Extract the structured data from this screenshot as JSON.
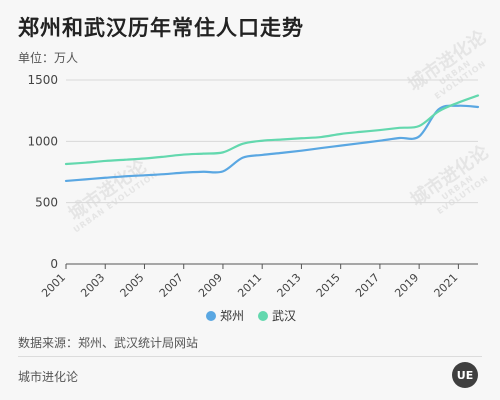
{
  "header": {
    "title": "郑州和武汉历年常住人口走势",
    "unit": "单位：万人"
  },
  "source": "数据来源：郑州、武汉统计局网站",
  "footer": {
    "brand": "城市进化论",
    "logo_text": "UE"
  },
  "watermark": {
    "main": "城市进化论",
    "sub": "URBAN EVOLUTION"
  },
  "colors": {
    "zhengzhou": "#5aa7e2",
    "wuhan": "#63d8ae",
    "grid": "#d8d8d8",
    "axis": "#555555"
  },
  "chart_data": {
    "type": "line",
    "title": "郑州和武汉历年常住人口走势",
    "ylabel": "万人",
    "ylim": [
      0,
      1500
    ],
    "yticks": [
      0,
      500,
      1000,
      1500
    ],
    "xlim": [
      2001,
      2022
    ],
    "xticks": [
      2001,
      2003,
      2005,
      2007,
      2009,
      2011,
      2013,
      2015,
      2017,
      2019,
      2021
    ],
    "grid": true,
    "legend_position": "bottom-center",
    "series": [
      {
        "name": "郑州",
        "color": "#5aa7e2",
        "x": [
          2001,
          2002,
          2003,
          2004,
          2005,
          2006,
          2007,
          2008,
          2009,
          2010,
          2011,
          2012,
          2013,
          2014,
          2015,
          2016,
          2017,
          2018,
          2019,
          2020,
          2021,
          2022
        ],
        "values": [
          677,
          690,
          703,
          715,
          723,
          732,
          745,
          752,
          755,
          866,
          889,
          906,
          924,
          945,
          965,
          985,
          1005,
          1027,
          1040,
          1262,
          1290,
          1280
        ]
      },
      {
        "name": "武汉",
        "color": "#63d8ae",
        "x": [
          2001,
          2002,
          2003,
          2004,
          2005,
          2006,
          2007,
          2008,
          2009,
          2010,
          2011,
          2012,
          2013,
          2014,
          2015,
          2016,
          2017,
          2018,
          2019,
          2020,
          2021,
          2022
        ],
        "values": [
          815,
          826,
          840,
          850,
          860,
          875,
          892,
          900,
          910,
          980,
          1005,
          1015,
          1025,
          1035,
          1060,
          1077,
          1092,
          1110,
          1125,
          1245,
          1316,
          1374
        ]
      }
    ]
  }
}
